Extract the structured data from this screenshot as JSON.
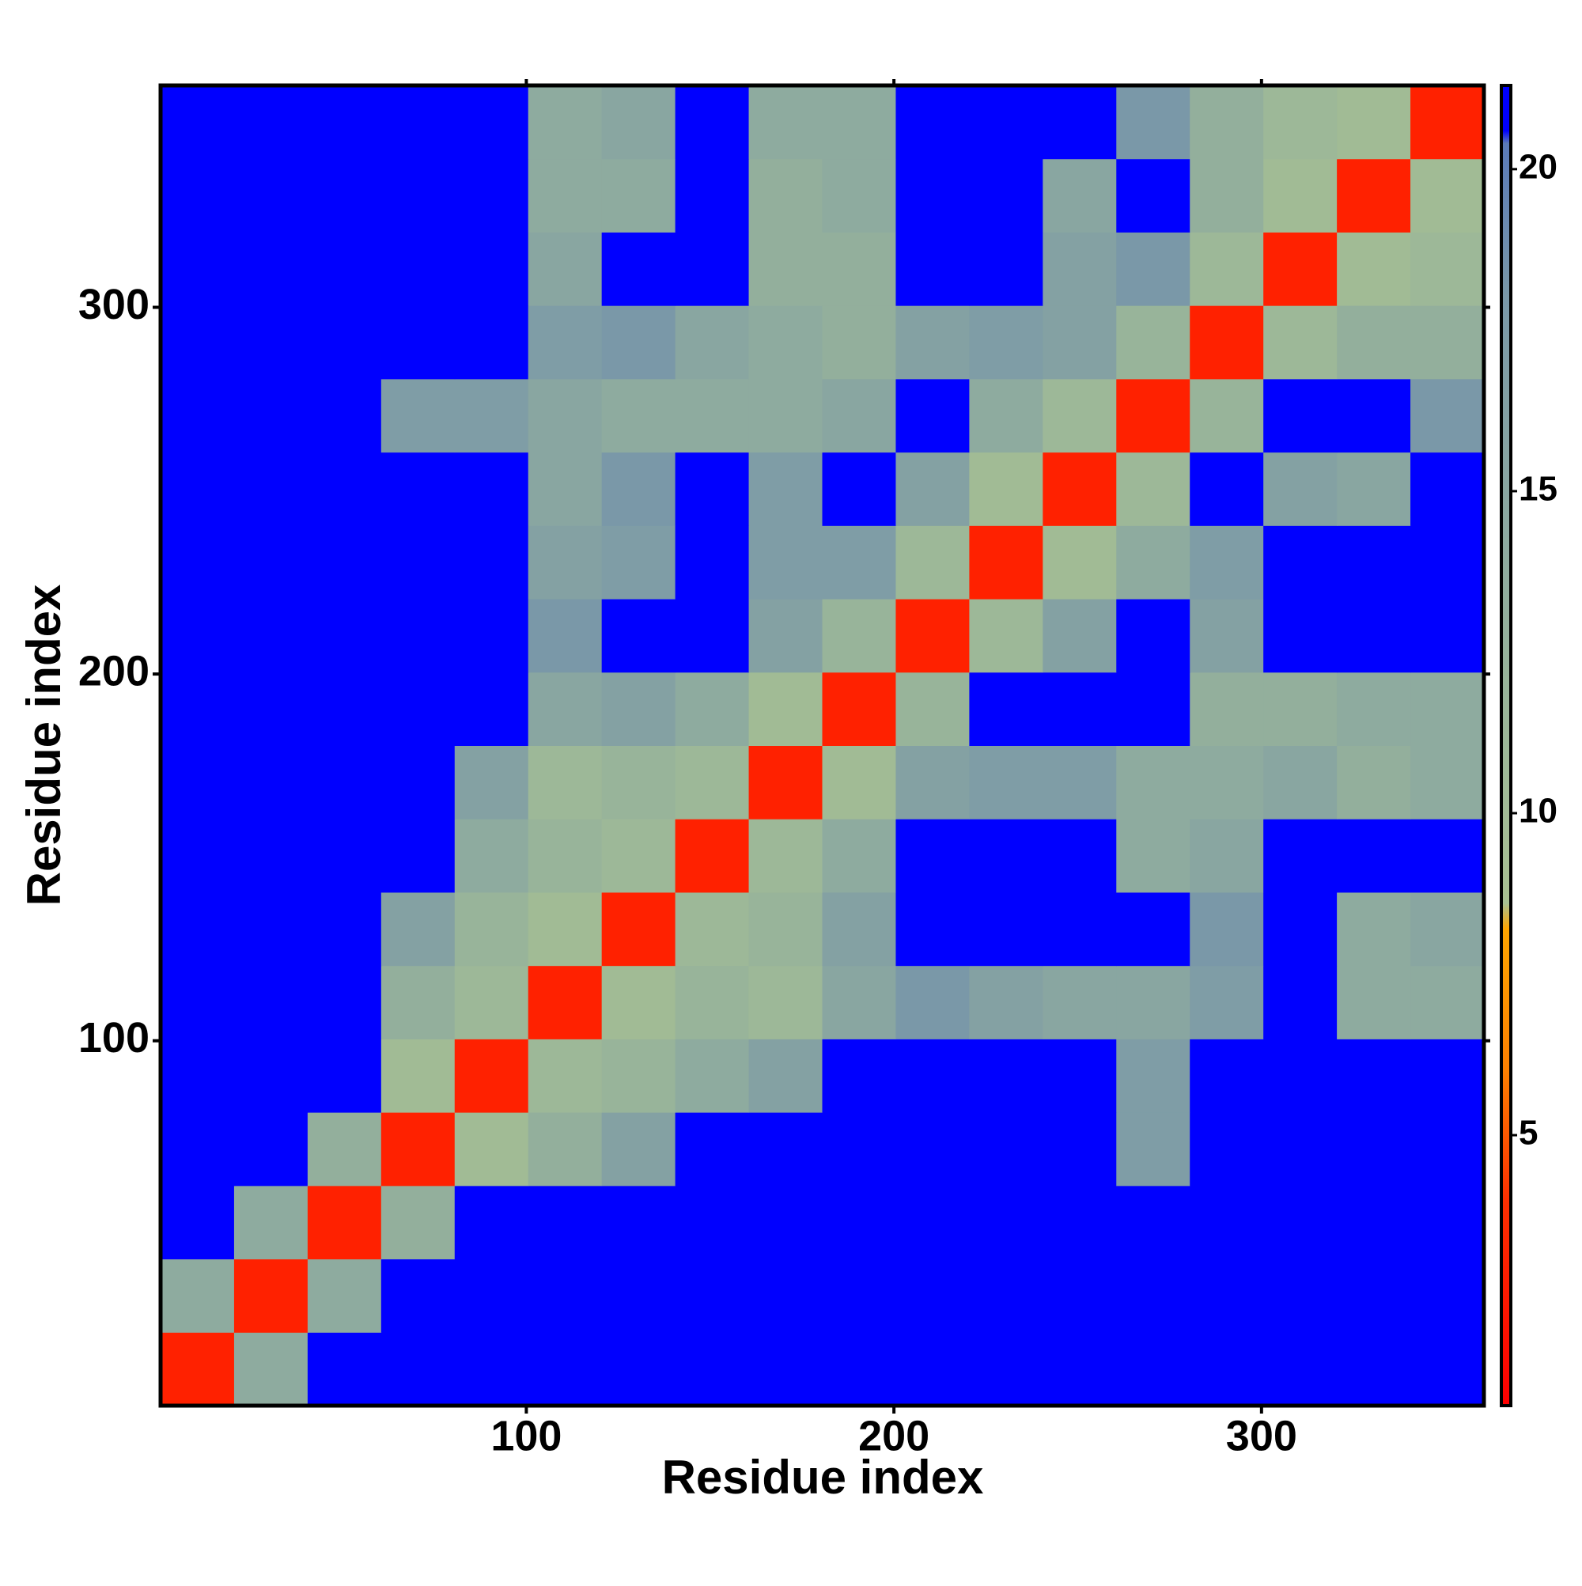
{
  "chart_data": {
    "type": "heatmap",
    "x_label": "Residue index",
    "y_label": "Residue index",
    "x_bins": [
      0.5,
      20.5,
      40.5,
      60.5,
      80.5,
      100.5,
      120.5,
      140.5,
      160.5,
      180.5,
      200.5,
      220.5,
      240.5,
      260.5,
      280.5,
      300.5,
      320.5,
      340.5,
      360.5
    ],
    "y_bins": [
      0.5,
      20.5,
      40.5,
      60.5,
      80.5,
      100.5,
      120.5,
      140.5,
      160.5,
      180.5,
      200.5,
      220.5,
      240.5,
      260.5,
      280.5,
      300.5,
      320.5,
      340.5,
      360.5
    ],
    "xlim": [
      0.5,
      360.5
    ],
    "ylim": [
      0.5,
      360.5
    ],
    "xticks": [
      100,
      200,
      300
    ],
    "yticks": [
      100,
      200,
      300
    ],
    "values": [
      [
        3,
        14,
        21,
        21,
        21,
        21,
        21,
        21,
        21,
        21,
        21,
        21,
        21,
        21,
        21,
        21,
        21,
        21
      ],
      [
        14,
        3,
        14,
        21,
        21,
        21,
        21,
        21,
        21,
        21,
        21,
        21,
        21,
        21,
        21,
        21,
        21,
        21
      ],
      [
        21,
        14,
        3,
        13,
        21,
        21,
        21,
        21,
        21,
        21,
        21,
        21,
        21,
        21,
        21,
        21,
        21,
        21
      ],
      [
        21,
        21,
        13,
        3,
        10,
        13,
        16,
        21,
        21,
        21,
        21,
        21,
        21,
        17,
        21,
        21,
        21,
        21
      ],
      [
        21,
        21,
        21,
        10,
        3,
        11,
        12,
        14,
        16,
        21,
        21,
        21,
        21,
        17,
        21,
        21,
        21,
        21
      ],
      [
        21,
        21,
        21,
        13,
        11,
        3,
        10,
        12,
        11,
        15,
        18,
        16,
        15,
        15,
        17,
        21,
        14,
        14
      ],
      [
        21,
        21,
        21,
        16,
        12,
        10,
        3,
        11,
        12,
        16,
        21,
        21,
        21,
        21,
        18,
        21,
        14,
        15
      ],
      [
        21,
        21,
        21,
        21,
        14,
        12,
        11,
        3,
        11,
        14,
        21,
        21,
        21,
        14,
        15,
        21,
        21,
        21
      ],
      [
        21,
        21,
        21,
        21,
        16,
        11,
        12,
        11,
        3,
        10,
        16,
        17,
        17,
        14,
        14,
        15,
        13,
        14
      ],
      [
        21,
        21,
        21,
        21,
        21,
        15,
        16,
        14,
        10,
        3,
        12,
        21,
        21,
        21,
        13,
        13,
        14,
        14
      ],
      [
        21,
        21,
        21,
        21,
        21,
        18,
        21,
        21,
        16,
        12,
        3,
        11,
        16,
        21,
        16,
        21,
        21,
        21
      ],
      [
        21,
        21,
        21,
        21,
        21,
        16,
        17,
        21,
        17,
        17,
        11,
        3,
        10,
        14,
        17,
        21,
        21,
        21
      ],
      [
        21,
        21,
        21,
        21,
        21,
        15,
        18,
        21,
        17,
        21,
        16,
        10,
        3,
        11,
        21,
        16,
        15,
        21
      ],
      [
        21,
        21,
        21,
        17,
        17,
        15,
        14,
        14,
        14,
        15,
        21,
        14,
        11,
        3,
        12,
        21,
        21,
        18
      ],
      [
        21,
        21,
        21,
        21,
        21,
        17,
        18,
        15,
        14,
        13,
        16,
        17,
        16,
        12,
        3,
        11,
        13,
        13
      ],
      [
        21,
        21,
        21,
        21,
        21,
        15,
        21,
        21,
        13,
        13,
        21,
        21,
        16,
        18,
        11,
        3,
        10,
        11
      ],
      [
        21,
        21,
        21,
        21,
        21,
        14,
        14,
        21,
        13,
        14,
        21,
        21,
        15,
        21,
        13,
        10,
        3,
        10
      ],
      [
        21,
        21,
        21,
        21,
        21,
        14,
        15,
        21,
        14,
        14,
        21,
        21,
        21,
        18,
        13,
        11,
        10,
        3
      ]
    ],
    "zlim": [
      0.8,
      21.3
    ],
    "zticks": [
      5,
      10,
      15,
      20
    ],
    "colorscale": [
      [
        0.8,
        "#ff0000"
      ],
      [
        4,
        "#ff3000"
      ],
      [
        6,
        "#ff8000"
      ],
      [
        8.2,
        "#ffa500"
      ],
      [
        8.6,
        "#a8c092"
      ],
      [
        12,
        "#98b49a"
      ],
      [
        18,
        "#7a98a8"
      ],
      [
        20.4,
        "#5a7ab8"
      ],
      [
        20.6,
        "#0000ff"
      ],
      [
        21.3,
        "#0000ff"
      ]
    ]
  }
}
